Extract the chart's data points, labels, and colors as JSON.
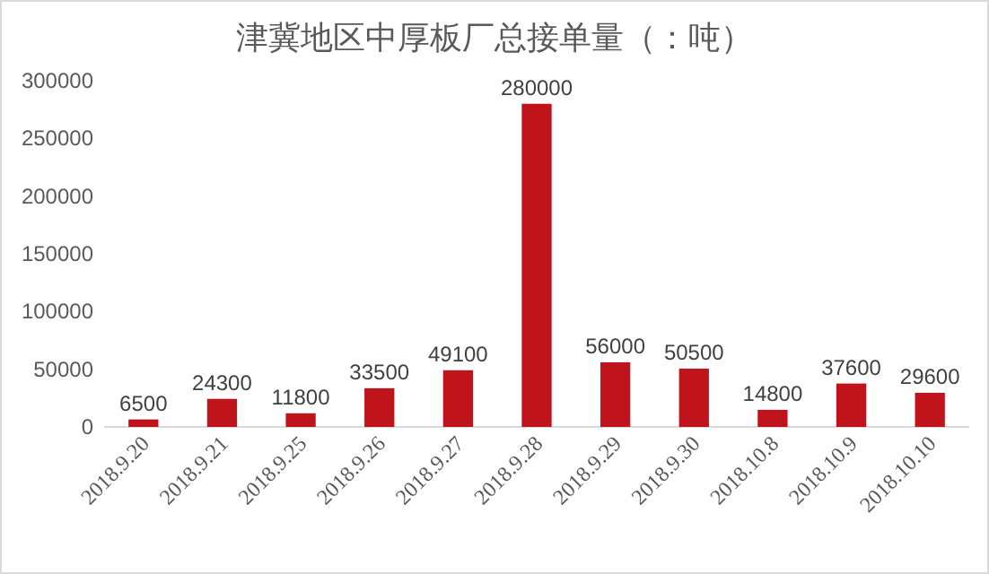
{
  "chart_data": {
    "type": "bar",
    "title": "津冀地区中厚板厂总接单量（：吨）",
    "categories": [
      "2018.9.20",
      "2018.9.21",
      "2018.9.25",
      "2018.9.26",
      "2018.9.27",
      "2018.9.28",
      "2018.9.29",
      "2018.9.30",
      "2018.10.8",
      "2018.10.9",
      "2018.10.10"
    ],
    "values": [
      6500,
      24300,
      11800,
      33500,
      49100,
      280000,
      56000,
      50500,
      14800,
      37600,
      29600
    ],
    "color": "#c0141c",
    "ylim": [
      0,
      300000
    ],
    "yticks": [
      0,
      50000,
      100000,
      150000,
      200000,
      250000,
      300000
    ],
    "data_labels": true,
    "grid": false
  }
}
